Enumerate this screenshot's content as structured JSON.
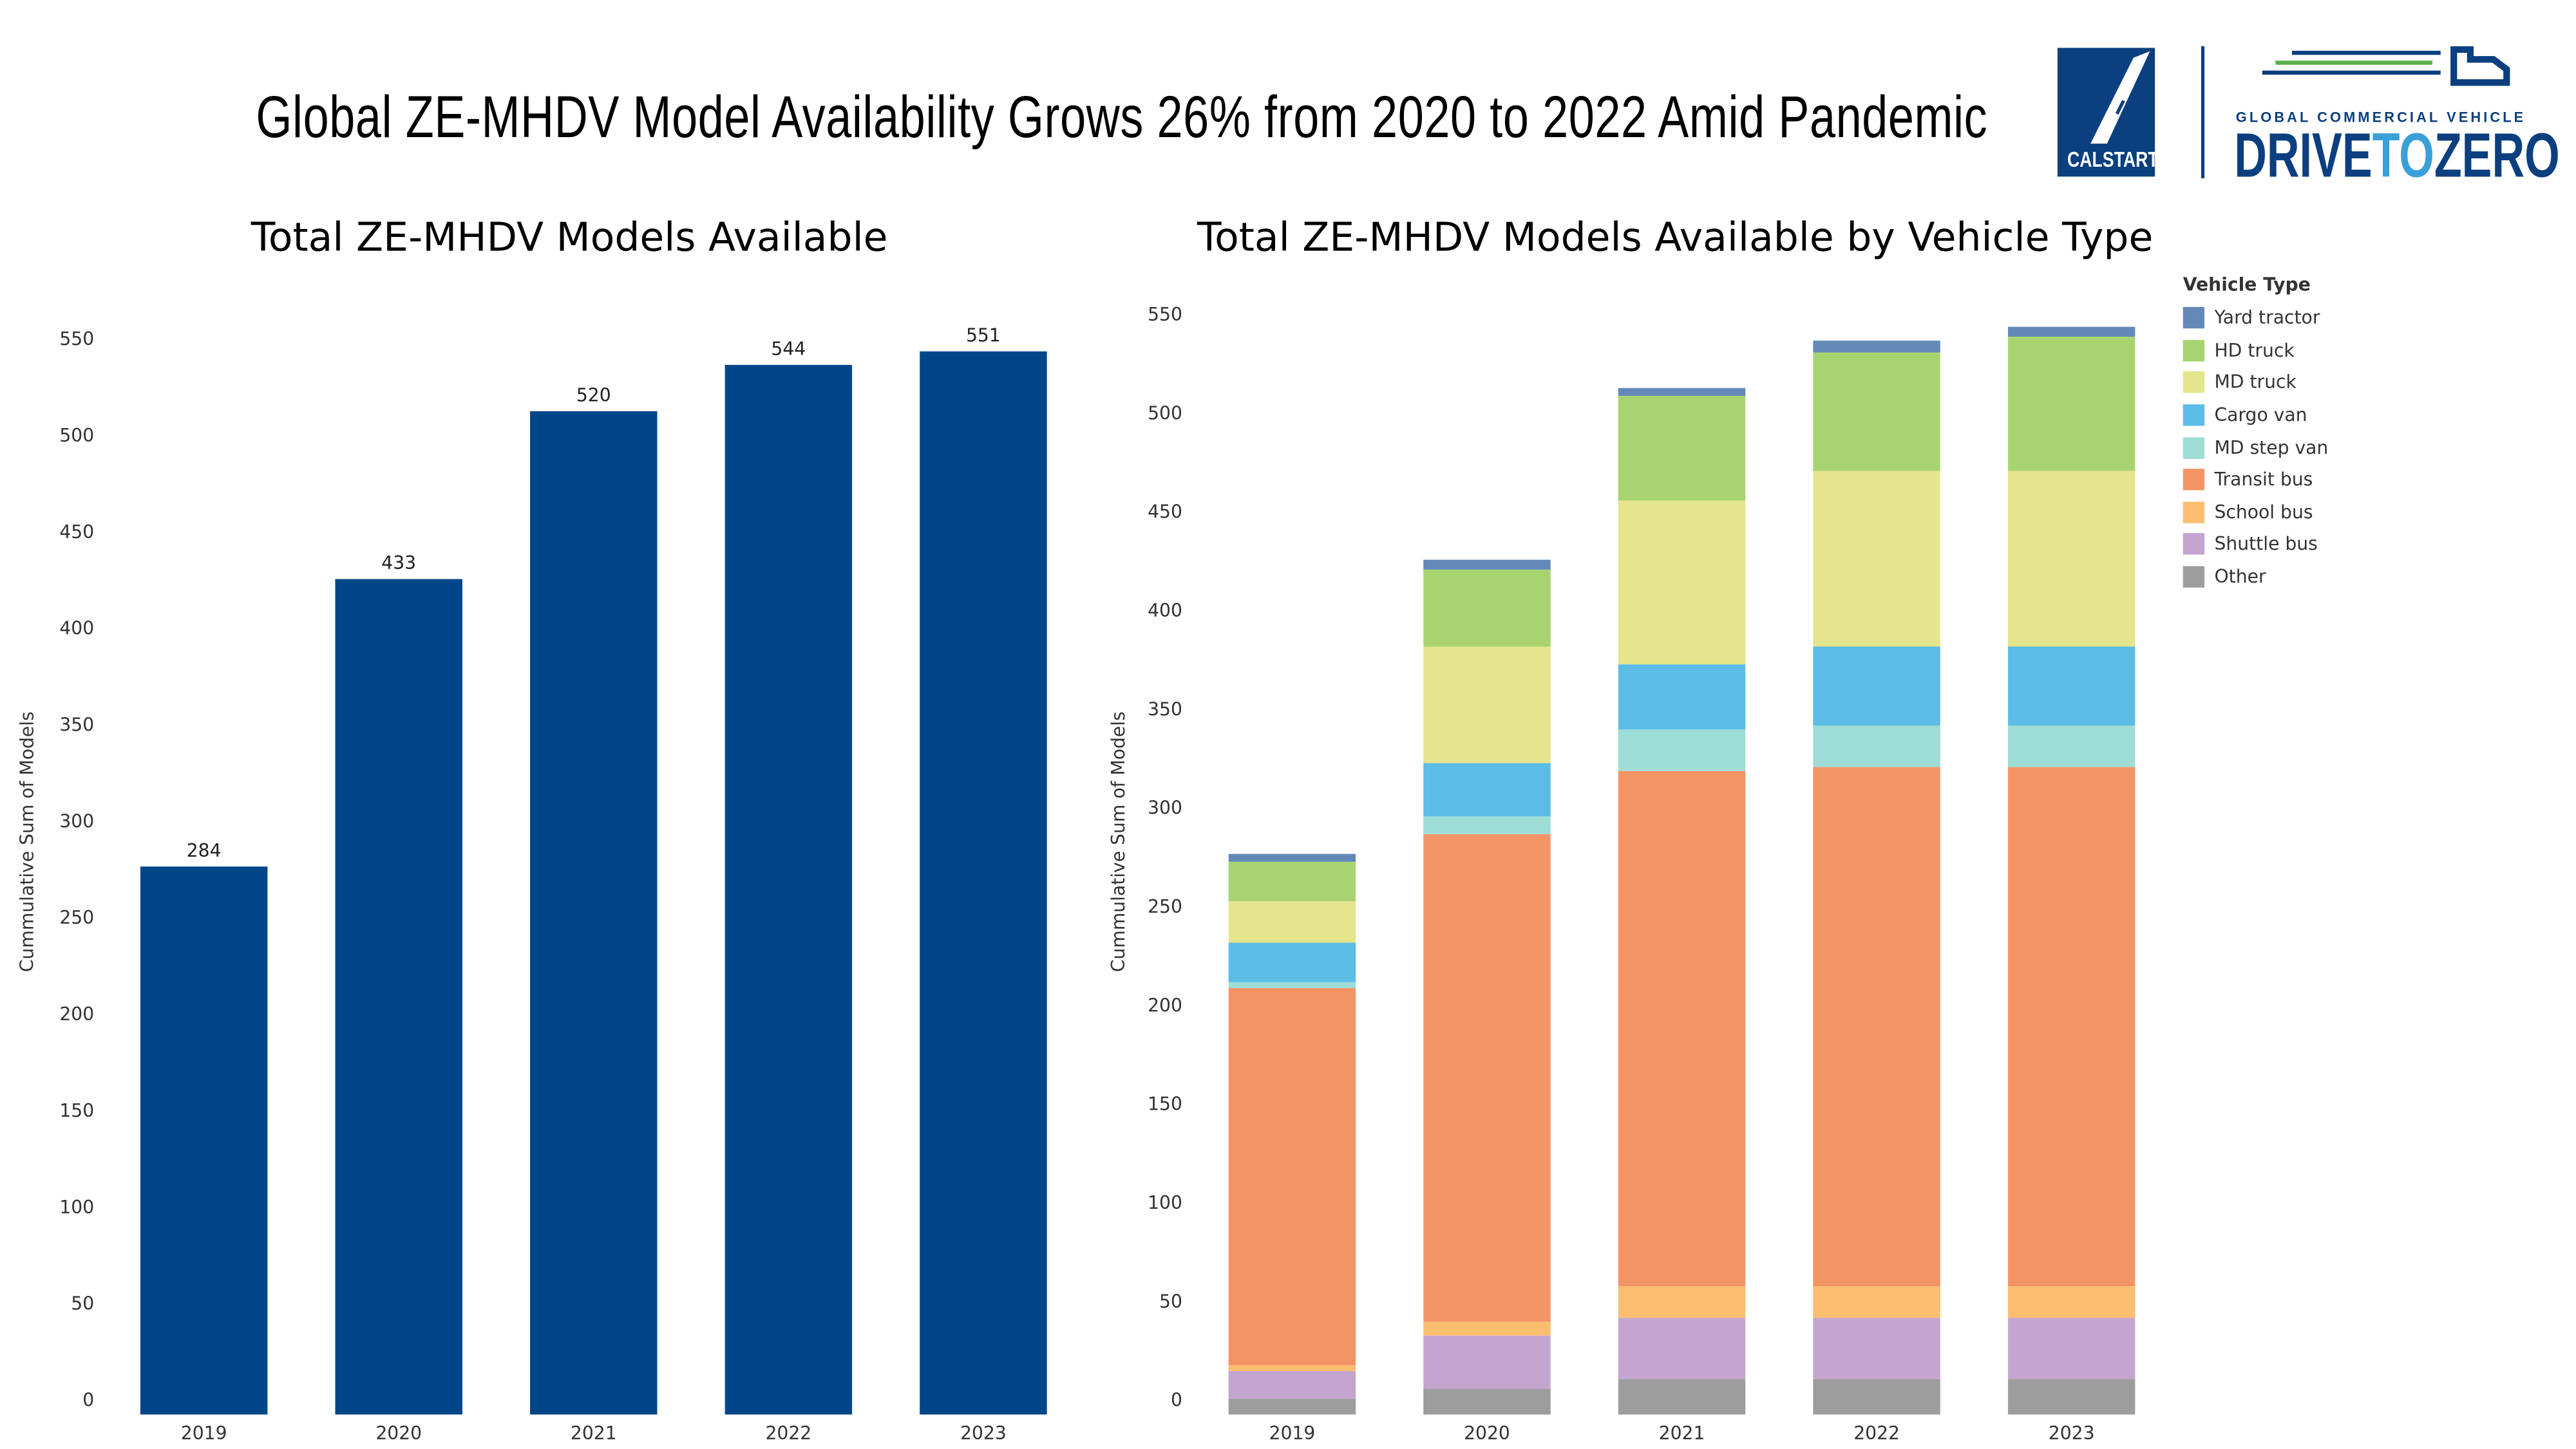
{
  "title": "Global ZE-MHDV Model Availability Grows 26% from 2020 to 2022 Amid Pandemic",
  "logos": {
    "calstart": "CALSTART",
    "d2z_tagline": "GLOBAL COMMERCIAL VEHICLE",
    "d2z_drive": "DRIVE",
    "d2z_to": "TO",
    "d2z_zero": "ZERO"
  },
  "chart_data": [
    {
      "type": "bar",
      "title": "Total ZE-MHDV Models Available",
      "ylabel": "Cummulative Sum of Models",
      "xlabel": "",
      "categories": [
        "2019",
        "2020",
        "2021",
        "2022",
        "2023"
      ],
      "values": [
        284,
        433,
        520,
        544,
        551
      ],
      "data_labels": [
        "284",
        "433",
        "520",
        "544",
        "551"
      ],
      "ylim": [
        0,
        550
      ],
      "yticks": [
        0,
        50,
        100,
        150,
        200,
        250,
        300,
        350,
        400,
        450,
        500,
        550
      ],
      "grid": false,
      "color": "#02468a"
    },
    {
      "type": "stacked-bar",
      "title": "Total ZE-MHDV Models Available by Vehicle Type",
      "ylabel": "Cummulative Sum of Models",
      "xlabel": "",
      "legend_title": "Vehicle Type",
      "legend_position": "right",
      "categories": [
        "2019",
        "2020",
        "2021",
        "2022",
        "2023"
      ],
      "ylim": [
        0,
        550
      ],
      "yticks": [
        0,
        50,
        100,
        150,
        200,
        250,
        300,
        350,
        400,
        450,
        500,
        550
      ],
      "grid": false,
      "series": [
        {
          "name": "Other",
          "color": "#9d9d9d",
          "values": [
            8,
            13,
            18,
            18,
            18
          ]
        },
        {
          "name": "Shuttle bus",
          "color": "#c3a5cf",
          "values": [
            14,
            27,
            31,
            31,
            31
          ]
        },
        {
          "name": "School bus",
          "color": "#fbbd6f",
          "values": [
            3,
            7,
            16,
            16,
            16
          ]
        },
        {
          "name": "Transit bus",
          "color": "#f39465",
          "values": [
            191,
            247,
            261,
            263,
            263
          ]
        },
        {
          "name": "MD step van",
          "color": "#9edcd6",
          "values": [
            3,
            9,
            21,
            21,
            21
          ]
        },
        {
          "name": "Cargo van",
          "color": "#5bbce6",
          "values": [
            20,
            27,
            33,
            40,
            40
          ]
        },
        {
          "name": "MD truck",
          "color": "#e4e58c",
          "values": [
            21,
            59,
            83,
            89,
            89
          ]
        },
        {
          "name": "HD truck",
          "color": "#a8d470",
          "values": [
            20,
            39,
            53,
            60,
            68
          ]
        },
        {
          "name": "Yard tractor",
          "color": "#6489b8",
          "values": [
            4,
            5,
            4,
            6,
            5
          ]
        }
      ]
    }
  ]
}
